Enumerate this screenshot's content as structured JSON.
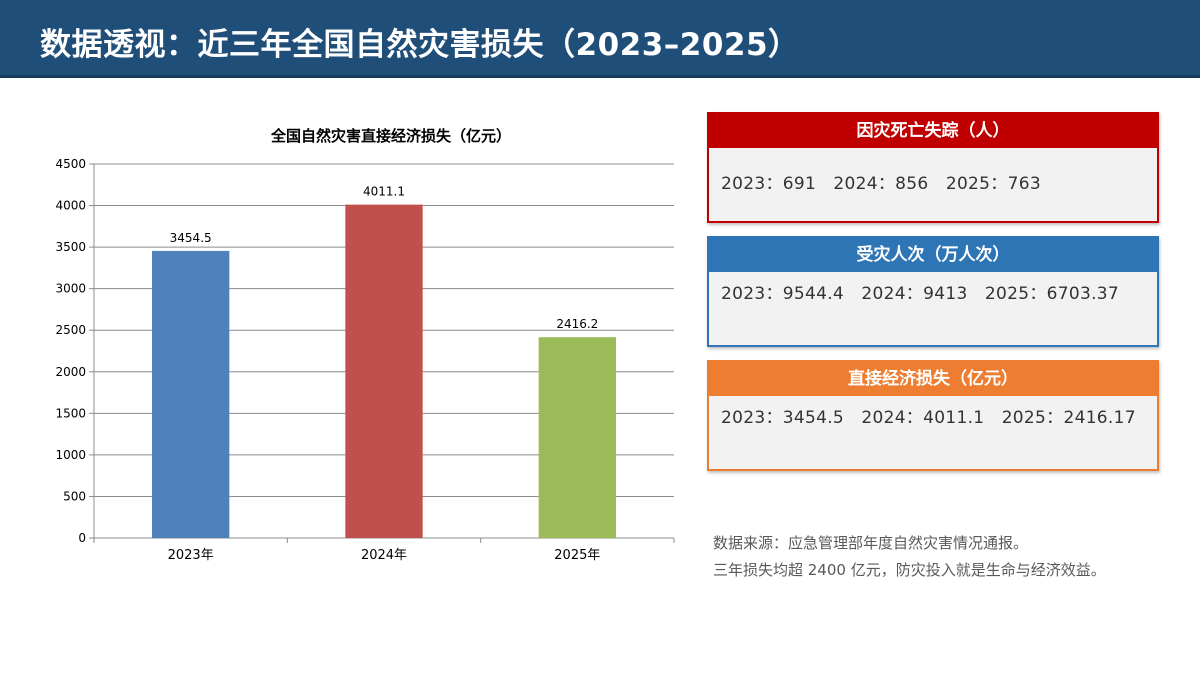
{
  "title": "数据透视：近三年全国自然灾害损失（2023–2025）",
  "chart_data": {
    "type": "bar",
    "title": "全国自然灾害直接经济损失（亿元）",
    "categories": [
      "2023年",
      "2024年",
      "2025年"
    ],
    "values": [
      3454.5,
      4011.1,
      2416.2
    ],
    "data_labels": [
      "3454.5",
      "4011.1",
      "2416.2"
    ],
    "colors": [
      "#4f81bd",
      "#c0504d",
      "#9bbb59"
    ],
    "ylim": [
      0,
      4500
    ],
    "yticks": [
      0,
      500,
      1000,
      1500,
      2000,
      2500,
      3000,
      3500,
      4000,
      4500
    ],
    "grid": true,
    "legend": "none"
  },
  "cards": {
    "deaths": {
      "header": "因灾死亡失踪（人）",
      "body": "2023：691　2024：856　2025：763",
      "color": "#c00000"
    },
    "affected": {
      "header": "受灾人次（万人次）",
      "body": "2023：9544.4　2024：9413　2025：6703.37",
      "color": "#2e75b6"
    },
    "loss": {
      "header": "直接经济损失（亿元）",
      "body": "2023：3454.5　2024：4011.1　2025：2416.17",
      "color": "#ed7d31"
    }
  },
  "notes": {
    "source": "数据来源：应急管理部年度自然灾害情况通报。",
    "insight": "三年损失均超 2400 亿元，防灾投入就是生命与经济效益。"
  }
}
